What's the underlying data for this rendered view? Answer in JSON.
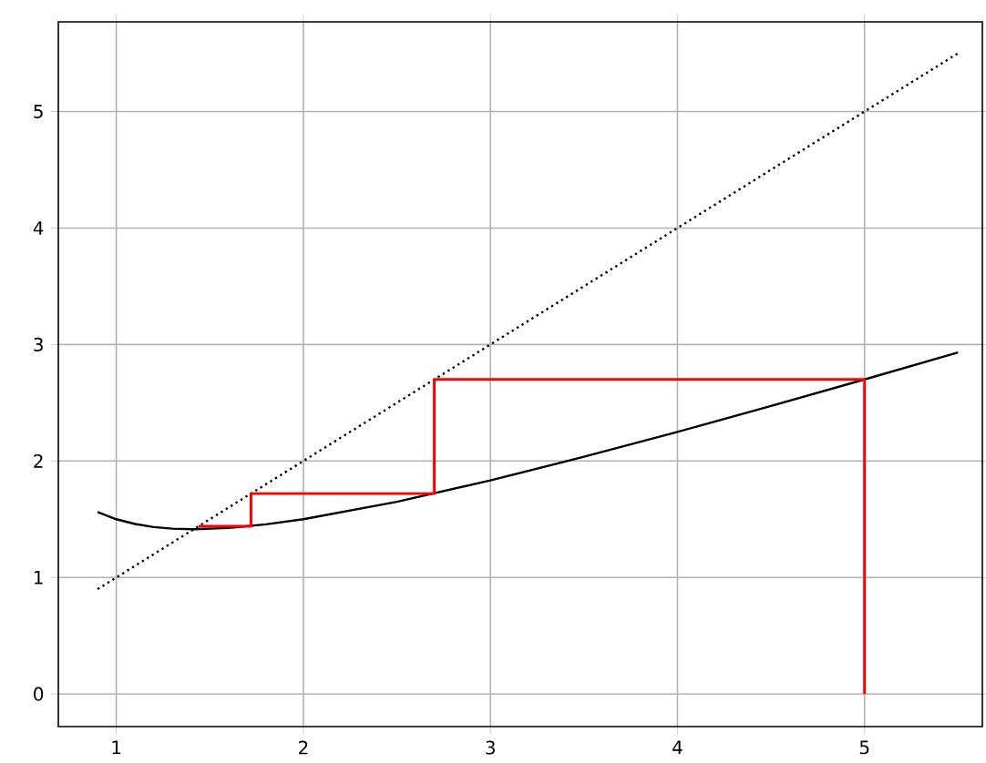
{
  "chart_data": {
    "type": "line",
    "xlim": [
      0.69,
      5.63
    ],
    "ylim": [
      -0.28,
      5.77
    ],
    "xticks": [
      1,
      2,
      3,
      4,
      5
    ],
    "yticks": [
      0,
      1,
      2,
      3,
      4,
      5
    ],
    "grid": true,
    "series": [
      {
        "color": "#000000",
        "line_style": "solid",
        "x": [
          0.9,
          1.0,
          1.1,
          1.2,
          1.3,
          1.414,
          1.6,
          1.8,
          2.0,
          2.5,
          3.0,
          3.5,
          4.0,
          4.5,
          5.0,
          5.5
        ],
        "values": [
          1.561,
          1.5,
          1.459,
          1.433,
          1.419,
          1.414,
          1.425,
          1.456,
          1.5,
          1.65,
          1.833,
          2.036,
          2.25,
          2.472,
          2.7,
          2.932
        ]
      },
      {
        "color": "#000000",
        "line_style": "dotted",
        "x": [
          0.9,
          5.5
        ],
        "values": [
          0.9,
          5.5
        ]
      },
      {
        "color": "#ff0000",
        "line_style": "solid",
        "x": [
          5,
          5,
          2.7,
          2.7,
          1.72,
          1.72,
          1.44
        ],
        "values": [
          0,
          2.7,
          2.7,
          1.72,
          1.72,
          1.44,
          1.44
        ]
      }
    ]
  }
}
